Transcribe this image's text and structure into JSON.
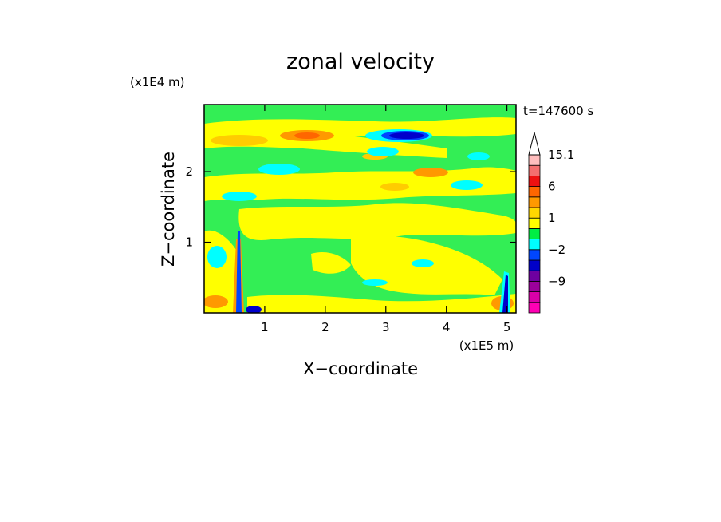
{
  "chart_data": {
    "type": "heatmap",
    "title": "zonal velocity",
    "xlabel": "X−coordinate",
    "ylabel": "Z−coordinate",
    "x_unit_label": "(x1E5 m)",
    "y_unit_label": "(x1E4 m)",
    "time_label": "t=147600 s",
    "xlim": [
      0,
      5.15
    ],
    "ylim": [
      0,
      2.95
    ],
    "x_ticks": [
      {
        "value": 1,
        "label": "1"
      },
      {
        "value": 2,
        "label": "2"
      },
      {
        "value": 3,
        "label": "3"
      },
      {
        "value": 4,
        "label": "4"
      },
      {
        "value": 5,
        "label": "5"
      }
    ],
    "y_ticks": [
      {
        "value": 1,
        "label": "1"
      },
      {
        "value": 2,
        "label": "2"
      }
    ],
    "colorbar": {
      "levels": [
        {
          "label": "",
          "color": "#ff00b4"
        },
        {
          "label": "",
          "color": "#d900a8"
        },
        {
          "label": "−9",
          "color": "#9b009b"
        },
        {
          "label": "",
          "color": "#6e00a0"
        },
        {
          "label": "",
          "color": "#0000c8"
        },
        {
          "label": "−2",
          "color": "#0046ff"
        },
        {
          "label": "",
          "color": "#00ffff"
        },
        {
          "label": "",
          "color": "#00ee44"
        },
        {
          "label": "1",
          "color": "#ffff00"
        },
        {
          "label": "",
          "color": "#ffd700"
        },
        {
          "label": "",
          "color": "#ff9900"
        },
        {
          "label": "6",
          "color": "#ff6600"
        },
        {
          "label": "",
          "color": "#ee1111"
        },
        {
          "label": "",
          "color": "#f46e6e"
        },
        {
          "label": "15.1",
          "color": "#ffbdbd"
        }
      ]
    },
    "colors": {
      "background_field": "#33ee55",
      "positive_weak": "#ffff00",
      "positive_mid": "#ffcc00",
      "positive_strong": "#ff7700",
      "negative_weak": "#00ffff",
      "negative_strong": "#0000cc"
    }
  }
}
